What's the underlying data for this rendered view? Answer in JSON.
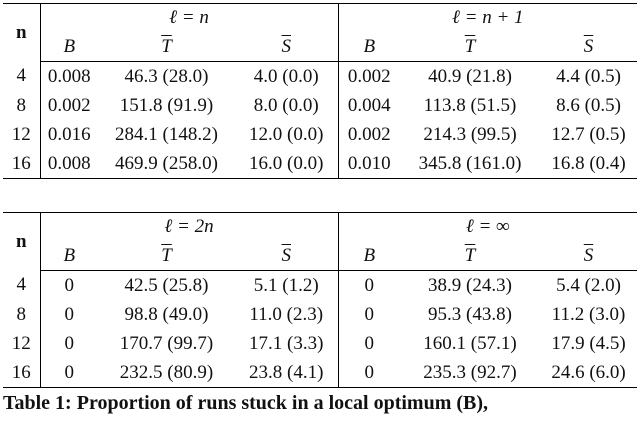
{
  "tables": [
    {
      "groups": [
        "ℓ = n",
        "ℓ = n + 1"
      ],
      "columns": [
        "n",
        "B",
        "T",
        "S",
        "B",
        "T",
        "S"
      ],
      "rows": [
        [
          "4",
          "0.008",
          "46.3 (28.0)",
          "4.0 (0.0)",
          "0.002",
          "40.9 (21.8)",
          "4.4 (0.5)"
        ],
        [
          "8",
          "0.002",
          "151.8 (91.9)",
          "8.0 (0.0)",
          "0.004",
          "113.8 (51.5)",
          "8.6 (0.5)"
        ],
        [
          "12",
          "0.016",
          "284.1 (148.2)",
          "12.0 (0.0)",
          "0.002",
          "214.3 (99.5)",
          "12.7 (0.5)"
        ],
        [
          "16",
          "0.008",
          "469.9 (258.0)",
          "16.0 (0.0)",
          "0.010",
          "345.8 (161.0)",
          "16.8 (0.4)"
        ]
      ]
    },
    {
      "groups": [
        "ℓ = 2n",
        "ℓ = ∞"
      ],
      "columns": [
        "n",
        "B",
        "T",
        "S",
        "B",
        "T",
        "S"
      ],
      "rows": [
        [
          "4",
          "0",
          "42.5 (25.8)",
          "5.1 (1.2)",
          "0",
          "38.9 (24.3)",
          "5.4 (2.0)"
        ],
        [
          "8",
          "0",
          "98.8 (49.0)",
          "11.0 (2.3)",
          "0",
          "95.3 (43.8)",
          "11.2 (3.0)"
        ],
        [
          "12",
          "0",
          "170.7 (99.7)",
          "17.1 (3.3)",
          "0",
          "160.1 (57.1)",
          "17.9 (4.5)"
        ],
        [
          "16",
          "0",
          "232.5 (80.9)",
          "23.8 (4.1)",
          "0",
          "235.3 (92.7)",
          "24.6 (6.0)"
        ]
      ]
    }
  ],
  "caption": "Table 1: Proportion of runs stuck in a local optimum (B),"
}
